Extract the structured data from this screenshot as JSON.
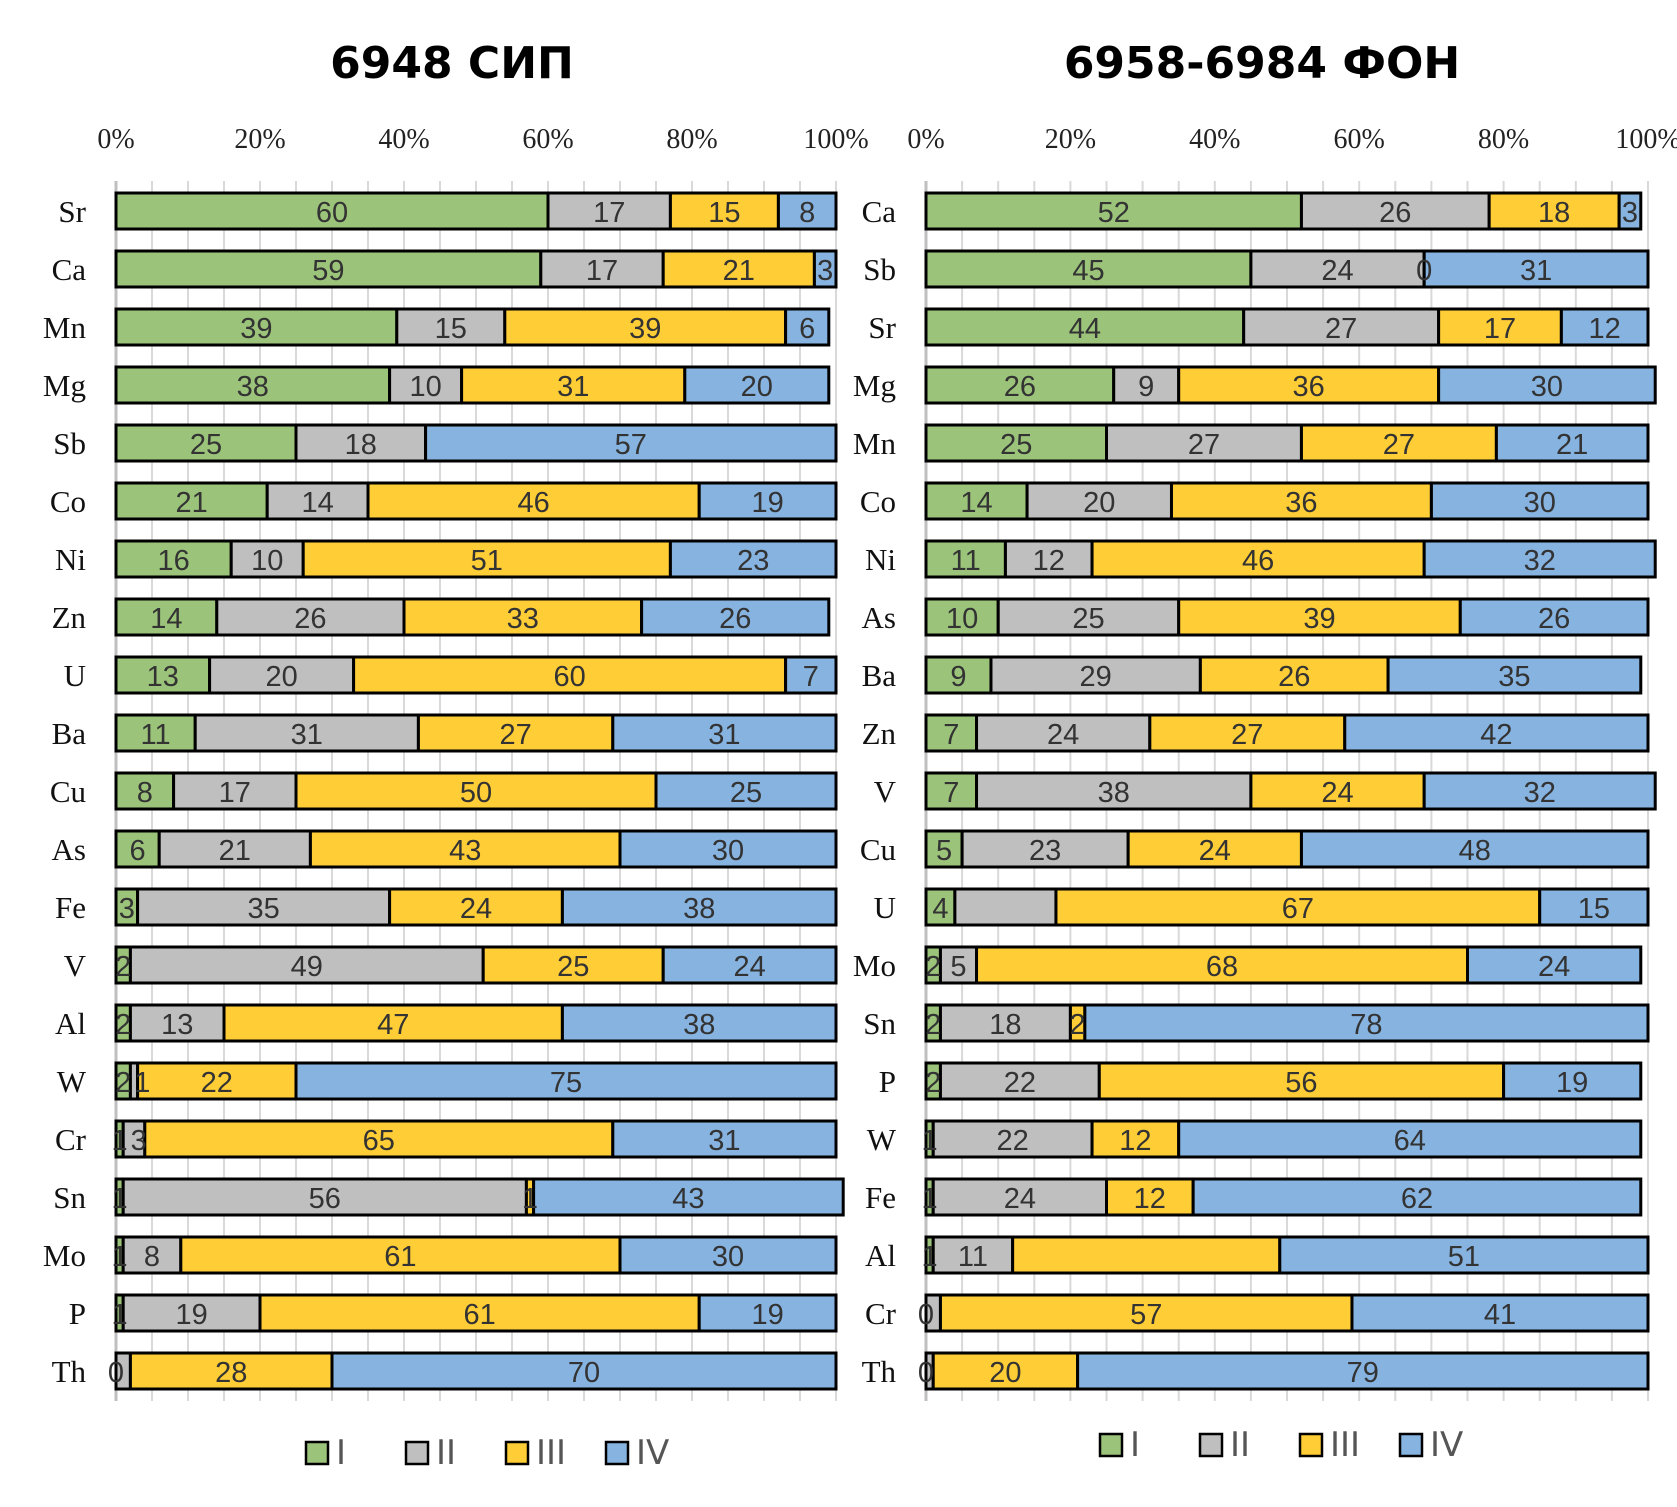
{
  "colors": {
    "I": "#9bc47a",
    "II": "#bfbfbf",
    "III": "#ffcd35",
    "IV": "#86b3e0"
  },
  "chart_data": [
    {
      "type": "bar",
      "stacking": "percent",
      "orientation": "horizontal",
      "title": "6948 СИП",
      "xlim": [
        0,
        100
      ],
      "x_ticks": [
        "0%",
        "20%",
        "40%",
        "60%",
        "80%",
        "100%"
      ],
      "grid": true,
      "legend_position": "bottom",
      "categories": [
        "Sr",
        "Ca",
        "Mn",
        "Mg",
        "Sb",
        "Co",
        "Ni",
        "Zn",
        "U",
        "Ba",
        "Cu",
        "As",
        "Fe",
        "V",
        "Al",
        "W",
        "Cr",
        "Sn",
        "Mo",
        "P",
        "Th"
      ],
      "series": [
        {
          "name": "I",
          "values": [
            60,
            59,
            39,
            38,
            25,
            21,
            16,
            14,
            13,
            11,
            8,
            6,
            3,
            2,
            2,
            2,
            1,
            1,
            1,
            1,
            0
          ]
        },
        {
          "name": "II",
          "values": [
            17,
            17,
            15,
            10,
            18,
            14,
            10,
            26,
            20,
            31,
            17,
            21,
            35,
            49,
            13,
            1,
            3,
            56,
            8,
            19,
            2
          ]
        },
        {
          "name": "III",
          "values": [
            15,
            21,
            39,
            31,
            0,
            46,
            51,
            33,
            60,
            27,
            50,
            43,
            24,
            25,
            47,
            22,
            65,
            1,
            61,
            61,
            28
          ]
        },
        {
          "name": "IV",
          "values": [
            8,
            3,
            6,
            20,
            57,
            19,
            23,
            26,
            7,
            31,
            25,
            30,
            38,
            24,
            38,
            75,
            31,
            43,
            30,
            19,
            70
          ]
        }
      ],
      "unlabeled": [
        [
          "Sb",
          "III"
        ],
        [
          "Th",
          "II"
        ]
      ]
    },
    {
      "type": "bar",
      "stacking": "percent",
      "orientation": "horizontal",
      "title": "6958-6984 ФОН",
      "xlim": [
        0,
        100
      ],
      "x_ticks": [
        "0%",
        "20%",
        "40%",
        "60%",
        "80%",
        "100%"
      ],
      "grid": true,
      "legend_position": "bottom",
      "categories": [
        "Ca",
        "Sb",
        "Sr",
        "Mg",
        "Mn",
        "Co",
        "Ni",
        "As",
        "Ba",
        "Zn",
        "V",
        "Cu",
        "U",
        "Mo",
        "Sn",
        "P",
        "W",
        "Fe",
        "Al",
        "Cr",
        "Th"
      ],
      "series": [
        {
          "name": "I",
          "values": [
            52,
            45,
            44,
            26,
            25,
            14,
            11,
            10,
            9,
            7,
            7,
            5,
            4,
            2,
            2,
            2,
            1,
            1,
            1,
            0,
            0
          ]
        },
        {
          "name": "II",
          "values": [
            26,
            24,
            27,
            9,
            27,
            20,
            12,
            25,
            29,
            24,
            38,
            23,
            14,
            5,
            18,
            22,
            22,
            24,
            11,
            2,
            1
          ]
        },
        {
          "name": "III",
          "values": [
            18,
            0,
            17,
            36,
            27,
            36,
            46,
            39,
            26,
            27,
            24,
            24,
            67,
            68,
            2,
            56,
            12,
            12,
            37,
            57,
            20
          ]
        },
        {
          "name": "IV",
          "values": [
            3,
            31,
            12,
            30,
            21,
            30,
            32,
            26,
            35,
            42,
            32,
            48,
            15,
            24,
            78,
            19,
            64,
            62,
            51,
            41,
            79
          ]
        }
      ],
      "unlabeled": [
        [
          "U",
          "II"
        ],
        [
          "Al",
          "III"
        ],
        [
          "Cr",
          "II"
        ],
        [
          "Th",
          "II"
        ]
      ]
    }
  ]
}
